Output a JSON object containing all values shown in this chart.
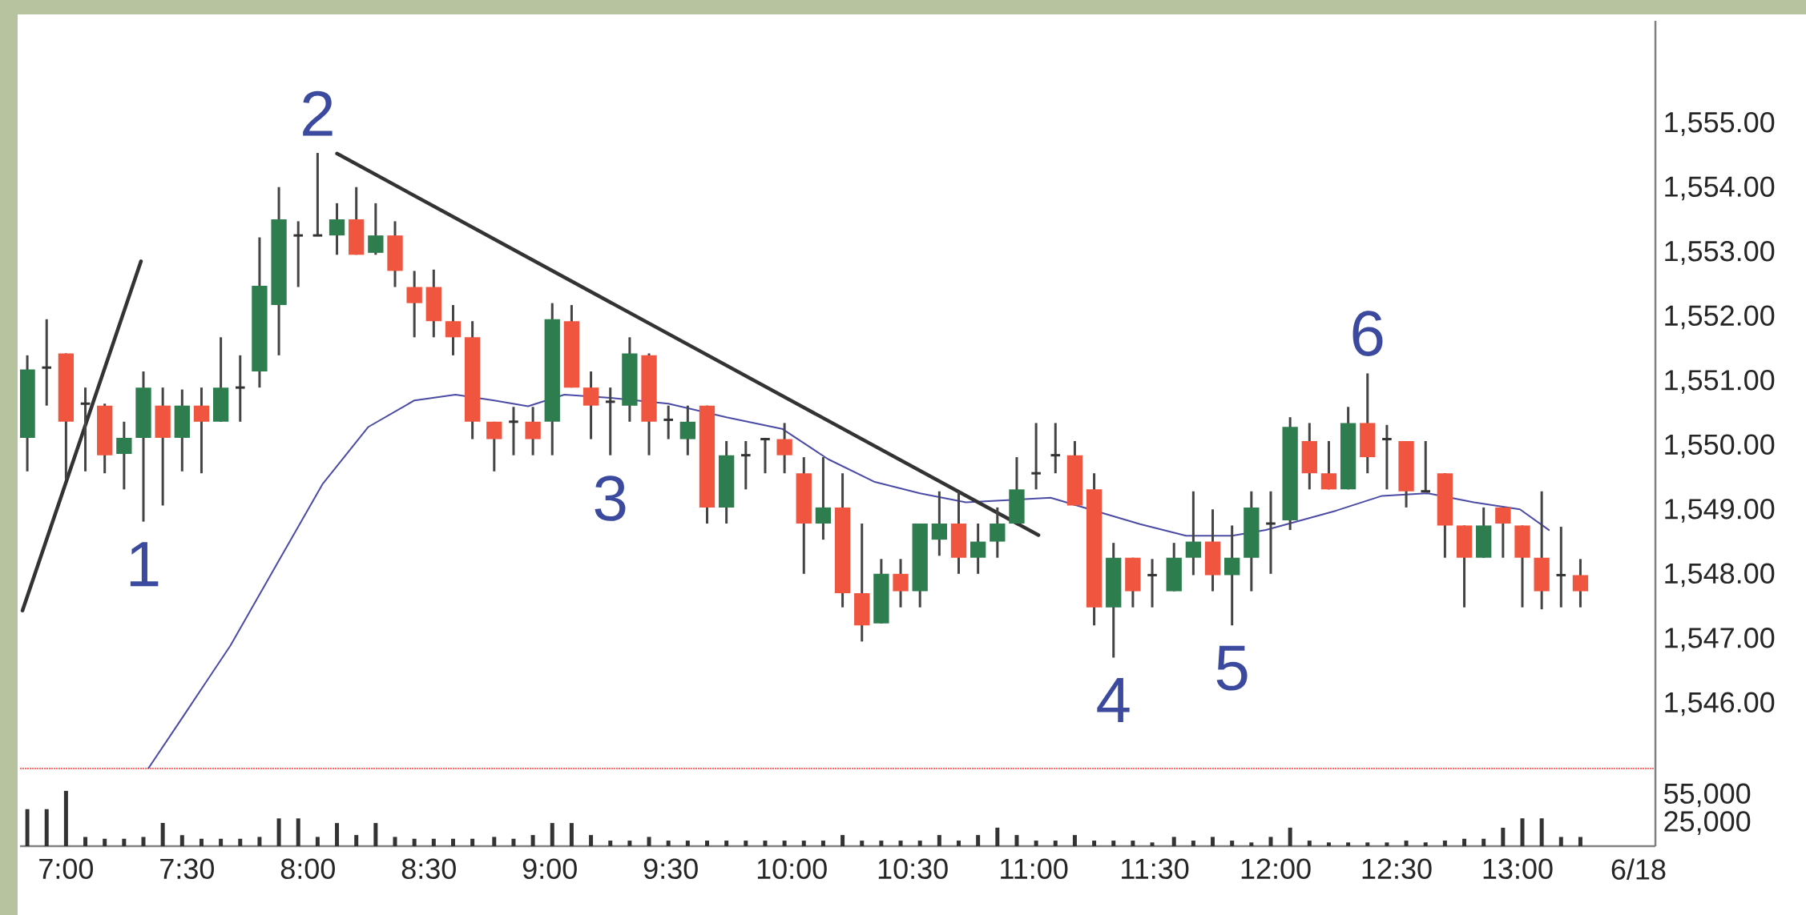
{
  "chart_data": [
    {
      "type": "candlestick",
      "tick_labels": "y",
      "xlim": [
        6.81,
        13.57
      ],
      "ylim": [
        1545,
        1556.6
      ],
      "yticks": [
        {
          "value": 1546,
          "label": "1,546.00"
        },
        {
          "value": 1547,
          "label": "1,547.00"
        },
        {
          "value": 1548,
          "label": "1,548.00"
        },
        {
          "value": 1549,
          "label": "1,549.00"
        },
        {
          "value": 1550,
          "label": "1,550.00"
        },
        {
          "value": 1551,
          "label": "1,551.00"
        },
        {
          "value": 1552,
          "label": "1,552.00"
        },
        {
          "value": 1553,
          "label": "1,553.00"
        },
        {
          "value": 1554,
          "label": "1,554.00"
        },
        {
          "value": 1555,
          "label": "1,555.00"
        }
      ],
      "x": [
        6.84,
        6.92,
        7.0,
        7.08,
        7.16,
        7.24,
        7.32,
        7.4,
        7.48,
        7.56,
        7.64,
        7.72,
        7.8,
        7.88,
        7.96,
        8.04,
        8.12,
        8.2,
        8.28,
        8.36,
        8.44,
        8.52,
        8.6,
        8.68,
        8.77,
        8.85,
        8.93,
        9.01,
        9.09,
        9.17,
        9.25,
        9.33,
        9.41,
        9.49,
        9.57,
        9.65,
        9.73,
        9.81,
        9.89,
        9.97,
        10.05,
        10.13,
        10.21,
        10.29,
        10.37,
        10.45,
        10.53,
        10.61,
        10.69,
        10.77,
        10.85,
        10.93,
        11.01,
        11.09,
        11.17,
        11.25,
        11.33,
        11.41,
        11.49,
        11.58,
        11.66,
        11.74,
        11.82,
        11.9,
        11.98,
        12.06,
        12.14,
        12.22,
        12.3,
        12.38,
        12.46,
        12.54,
        12.62,
        12.7,
        12.78,
        12.86,
        12.94,
        13.02,
        13.1,
        13.18,
        13.26
      ],
      "ohlc": [
        [
          1550.13,
          1551.41,
          1549.61,
          1551.19
        ],
        [
          1551.22,
          1551.97,
          1550.63,
          1551.22
        ],
        [
          1551.44,
          1551.44,
          1549.49,
          1550.38
        ],
        [
          1550.66,
          1550.91,
          1549.61,
          1550.66
        ],
        [
          1550.63,
          1550.66,
          1549.58,
          1549.86
        ],
        [
          1549.88,
          1550.38,
          1549.33,
          1550.13
        ],
        [
          1550.13,
          1551.16,
          1548.83,
          1550.91
        ],
        [
          1550.63,
          1550.91,
          1549.08,
          1550.13
        ],
        [
          1550.13,
          1550.88,
          1549.61,
          1550.63
        ],
        [
          1550.63,
          1550.91,
          1549.58,
          1550.38
        ],
        [
          1550.38,
          1551.69,
          1550.38,
          1550.91
        ],
        [
          1550.91,
          1551.41,
          1550.38,
          1550.91
        ],
        [
          1551.16,
          1553.24,
          1550.91,
          1552.49
        ],
        [
          1552.19,
          1554.02,
          1551.41,
          1553.52
        ],
        [
          1553.27,
          1553.49,
          1552.47,
          1553.27
        ],
        [
          1553.27,
          1554.55,
          1553.27,
          1553.27
        ],
        [
          1553.27,
          1553.77,
          1552.97,
          1553.52
        ],
        [
          1553.52,
          1554.02,
          1552.97,
          1552.97
        ],
        [
          1553.0,
          1553.77,
          1552.97,
          1553.27
        ],
        [
          1553.27,
          1553.49,
          1552.47,
          1552.72
        ],
        [
          1552.47,
          1552.72,
          1551.69,
          1552.22
        ],
        [
          1552.47,
          1552.74,
          1551.69,
          1551.94
        ],
        [
          1551.94,
          1552.19,
          1551.41,
          1551.69
        ],
        [
          1551.69,
          1551.94,
          1550.11,
          1550.38
        ],
        [
          1550.38,
          1550.38,
          1549.61,
          1550.11
        ],
        [
          1550.38,
          1550.61,
          1549.86,
          1550.38
        ],
        [
          1550.38,
          1550.61,
          1549.86,
          1550.11
        ],
        [
          1550.38,
          1552.22,
          1549.86,
          1551.97
        ],
        [
          1551.94,
          1552.19,
          1550.91,
          1550.91
        ],
        [
          1550.91,
          1551.16,
          1550.11,
          1550.63
        ],
        [
          1550.69,
          1550.91,
          1549.86,
          1550.69
        ],
        [
          1550.63,
          1551.69,
          1550.38,
          1551.44
        ],
        [
          1551.41,
          1551.44,
          1549.86,
          1550.38
        ],
        [
          1550.41,
          1550.63,
          1550.11,
          1550.41
        ],
        [
          1550.11,
          1550.63,
          1549.86,
          1550.38
        ],
        [
          1550.63,
          1550.63,
          1548.8,
          1549.05
        ],
        [
          1549.05,
          1550.08,
          1548.8,
          1549.86
        ],
        [
          1549.86,
          1550.08,
          1549.33,
          1549.86
        ],
        [
          1550.11,
          1550.13,
          1549.58,
          1550.11
        ],
        [
          1550.11,
          1550.36,
          1549.58,
          1549.86
        ],
        [
          1549.58,
          1549.83,
          1548.02,
          1548.8
        ],
        [
          1548.8,
          1549.83,
          1548.55,
          1549.05
        ],
        [
          1549.05,
          1549.58,
          1547.5,
          1547.72
        ],
        [
          1547.72,
          1548.8,
          1546.97,
          1547.22
        ],
        [
          1547.25,
          1548.25,
          1547.25,
          1548.02
        ],
        [
          1548.02,
          1548.25,
          1547.5,
          1547.75
        ],
        [
          1547.75,
          1548.8,
          1547.5,
          1548.8
        ],
        [
          1548.55,
          1549.3,
          1548.3,
          1548.8
        ],
        [
          1548.8,
          1549.3,
          1548.02,
          1548.27
        ],
        [
          1548.27,
          1548.8,
          1548.02,
          1548.52
        ],
        [
          1548.52,
          1549.05,
          1548.27,
          1548.8
        ],
        [
          1548.8,
          1549.83,
          1548.8,
          1549.33
        ],
        [
          1549.58,
          1550.36,
          1549.33,
          1549.58
        ],
        [
          1549.86,
          1550.36,
          1549.58,
          1549.86
        ],
        [
          1549.86,
          1550.08,
          1549.08,
          1549.08
        ],
        [
          1549.33,
          1549.58,
          1547.22,
          1547.5
        ],
        [
          1547.5,
          1548.5,
          1546.72,
          1548.27
        ],
        [
          1548.27,
          1548.27,
          1547.5,
          1547.75
        ],
        [
          1548.0,
          1548.25,
          1547.5,
          1548.0
        ],
        [
          1547.75,
          1548.5,
          1547.75,
          1548.27
        ],
        [
          1548.27,
          1549.3,
          1548.0,
          1548.52
        ],
        [
          1548.52,
          1549.02,
          1547.75,
          1548.0
        ],
        [
          1548.0,
          1548.77,
          1547.22,
          1548.27
        ],
        [
          1548.27,
          1549.3,
          1547.75,
          1549.05
        ],
        [
          1548.8,
          1549.3,
          1548.02,
          1548.8
        ],
        [
          1548.85,
          1550.45,
          1548.7,
          1550.3
        ],
        [
          1550.08,
          1550.36,
          1549.33,
          1549.58
        ],
        [
          1549.58,
          1550.08,
          1549.33,
          1549.33
        ],
        [
          1549.33,
          1550.61,
          1549.33,
          1550.36
        ],
        [
          1550.36,
          1551.13,
          1549.58,
          1549.83
        ],
        [
          1550.11,
          1550.33,
          1549.33,
          1550.11
        ],
        [
          1550.08,
          1550.08,
          1549.05,
          1549.3
        ],
        [
          1549.3,
          1550.08,
          1549.3,
          1549.3
        ],
        [
          1549.58,
          1549.58,
          1548.27,
          1548.77
        ],
        [
          1548.77,
          1548.77,
          1547.5,
          1548.27
        ],
        [
          1548.27,
          1549.05,
          1548.27,
          1548.77
        ],
        [
          1549.05,
          1549.05,
          1548.27,
          1548.8
        ],
        [
          1548.77,
          1548.77,
          1547.5,
          1548.27
        ],
        [
          1548.27,
          1549.3,
          1547.47,
          1547.75
        ],
        [
          1548.0,
          1548.75,
          1547.5,
          1548.0
        ],
        [
          1548.0,
          1548.25,
          1547.5,
          1547.75
        ]
      ],
      "series": [
        {
          "type": "line",
          "color": "#4b4ba6",
          "x": [
            7.34,
            7.49,
            7.68,
            7.87,
            8.06,
            8.25,
            8.44,
            8.61,
            8.77,
            8.91,
            9.06,
            9.25,
            9.49,
            9.73,
            9.96,
            10.15,
            10.34,
            10.53,
            10.72,
            10.91,
            11.07,
            11.25,
            11.44,
            11.63,
            11.82,
            11.96,
            12.06,
            12.25,
            12.44,
            12.63,
            12.82,
            13.01,
            13.13
          ],
          "values": [
            1545.0,
            1545.84,
            1546.91,
            1548.16,
            1549.41,
            1550.3,
            1550.71,
            1550.8,
            1550.71,
            1550.62,
            1550.8,
            1550.75,
            1550.66,
            1550.45,
            1550.27,
            1549.8,
            1549.45,
            1549.27,
            1549.13,
            null,
            1549.2,
            null,
            1548.79,
            1548.61,
            1548.61,
            1548.7,
            null,
            1549.0,
            1549.23,
            1549.27,
            1549.13,
            1549.02,
            1548.7
          ]
        },
        {
          "type": "line",
          "color": "#333333",
          "x": [
            6.82,
            7.31
          ],
          "values": [
            1547.45,
            1552.87
          ]
        },
        {
          "type": "line",
          "color": "#333333",
          "x": [
            8.12,
            11.02
          ],
          "values": [
            1554.54,
            1548.62
          ]
        }
      ],
      "annotations": [
        {
          "text": "1",
          "x": 7.32,
          "y": 1548.83
        },
        {
          "text": "2",
          "x": 8.04,
          "y": 1554.55
        },
        {
          "text": "3",
          "x": 9.25,
          "y": 1549.86
        },
        {
          "text": "4",
          "x": 11.33,
          "y": 1546.72
        },
        {
          "text": "5",
          "x": 11.82,
          "y": 1547.22
        },
        {
          "text": "6",
          "x": 12.38,
          "y": 1551.13
        }
      ]
    },
    {
      "type": "bar",
      "color": "#333333",
      "xlim": [
        6.81,
        13.57
      ],
      "ylim": [
        0,
        84000
      ],
      "xticks": [
        {
          "value": 7,
          "label": "7:00"
        },
        {
          "value": 7.5,
          "label": "7:30"
        },
        {
          "value": 8,
          "label": "8:00"
        },
        {
          "value": 8.5,
          "label": "8:30"
        },
        {
          "value": 9,
          "label": "9:00"
        },
        {
          "value": 9.5,
          "label": "9:30"
        },
        {
          "value": 10,
          "label": "10:00"
        },
        {
          "value": 10.5,
          "label": "10:30"
        },
        {
          "value": 11,
          "label": "11:00"
        },
        {
          "value": 11.5,
          "label": "11:30"
        },
        {
          "value": 12,
          "label": "12:00"
        },
        {
          "value": 12.5,
          "label": "12:30"
        },
        {
          "value": 13,
          "label": "13:00"
        },
        {
          "value": 13.5,
          "label": "6/18"
        }
      ],
      "yticks": [
        {
          "value": 25000,
          "label": "25,000"
        },
        {
          "value": 55000,
          "label": "55,000"
        }
      ],
      "x": [
        6.84,
        6.92,
        7.0,
        7.08,
        7.16,
        7.24,
        7.32,
        7.4,
        7.48,
        7.56,
        7.64,
        7.72,
        7.8,
        7.88,
        7.96,
        8.04,
        8.12,
        8.2,
        8.28,
        8.36,
        8.44,
        8.52,
        8.6,
        8.68,
        8.77,
        8.85,
        8.93,
        9.01,
        9.09,
        9.17,
        9.25,
        9.33,
        9.41,
        9.49,
        9.57,
        9.65,
        9.73,
        9.81,
        9.89,
        9.97,
        10.05,
        10.13,
        10.21,
        10.29,
        10.37,
        10.45,
        10.53,
        10.61,
        10.69,
        10.77,
        10.85,
        10.93,
        11.01,
        11.09,
        11.17,
        11.25,
        11.33,
        11.41,
        11.49,
        11.58,
        11.66,
        11.74,
        11.82,
        11.9,
        11.98,
        12.06,
        12.14,
        12.22,
        12.3,
        12.38,
        12.46,
        12.54,
        12.62,
        12.7,
        12.78,
        12.86,
        12.94,
        13.02,
        13.1,
        13.18,
        13.26
      ],
      "values": [
        40000,
        40000,
        60000,
        10000,
        8000,
        8000,
        10000,
        25000,
        12000,
        8000,
        8000,
        8000,
        10000,
        30000,
        30000,
        10000,
        25000,
        12000,
        25000,
        10000,
        8000,
        8000,
        8000,
        8000,
        10000,
        8000,
        12000,
        25000,
        25000,
        12000,
        6000,
        6000,
        10000,
        6000,
        6000,
        6000,
        6000,
        6000,
        6000,
        6000,
        6000,
        6000,
        12000,
        6000,
        6000,
        6000,
        6000,
        12000,
        6000,
        12000,
        20000,
        12000,
        6000,
        6000,
        12000,
        6000,
        6000,
        6000,
        4000,
        10000,
        6000,
        10000,
        6000,
        4000,
        10000,
        20000,
        6000,
        4000,
        4000,
        4000,
        4000,
        6000,
        4000,
        6000,
        8000,
        8000,
        20000,
        30000,
        30000,
        10000,
        10000
      ]
    }
  ]
}
